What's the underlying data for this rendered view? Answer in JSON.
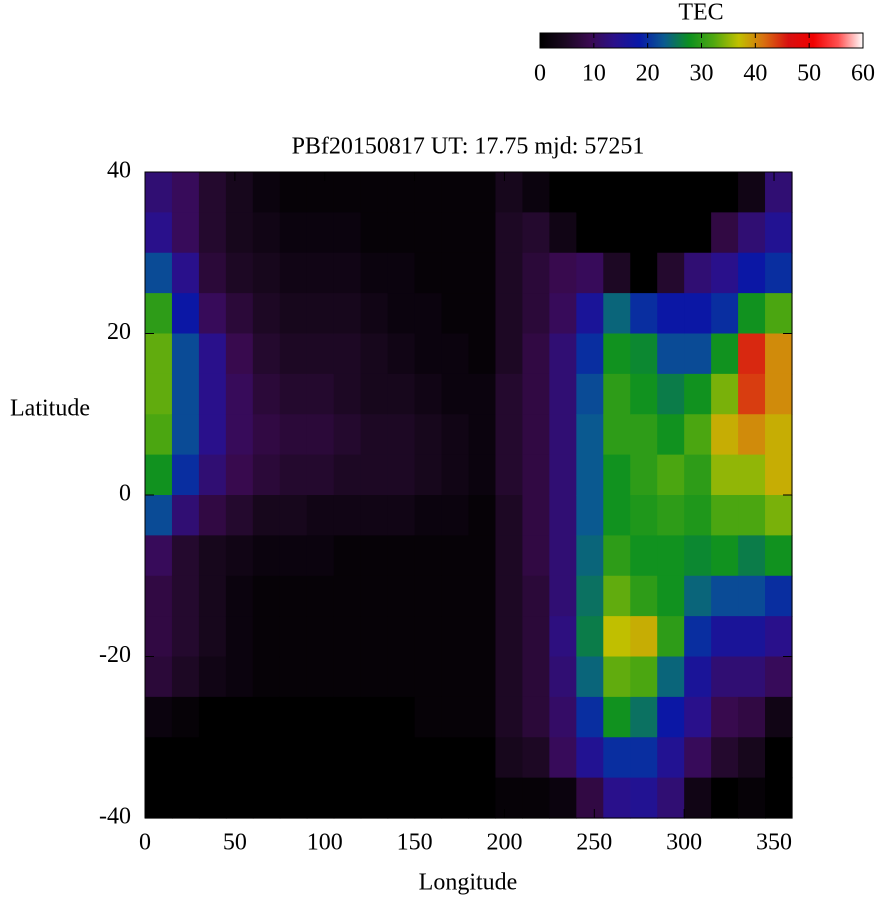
{
  "chart_data": {
    "type": "heatmap",
    "title": "PBf20150817  UT: 17.75  mjd: 57251",
    "xlabel": "Longitude",
    "ylabel": "Latitude",
    "colorbar_label": "TEC",
    "xlim": [
      0,
      360
    ],
    "ylim": [
      -40,
      40
    ],
    "xticks": [
      0,
      50,
      100,
      150,
      200,
      250,
      300,
      350
    ],
    "yticks": [
      40,
      20,
      0,
      -20,
      -40
    ],
    "clim": [
      0,
      60
    ],
    "cticks": [
      0,
      10,
      20,
      30,
      40,
      50,
      60
    ],
    "colormap": [
      "#000000",
      "#1a0820",
      "#3a0a50",
      "#2a108a",
      "#0818a8",
      "#0a5a90",
      "#0c9020",
      "#50a810",
      "#c0c000",
      "#d87010",
      "#d81010",
      "#f00000",
      "#ff5050",
      "#ffffff"
    ],
    "x": [
      7.5,
      22.5,
      37.5,
      52.5,
      67.5,
      82.5,
      97.5,
      112.5,
      127.5,
      142.5,
      157.5,
      172.5,
      187.5,
      202.5,
      217.5,
      232.5,
      247.5,
      262.5,
      277.5,
      292.5,
      307.5,
      322.5,
      337.5,
      352.5
    ],
    "y": [
      37.5,
      32.5,
      27.5,
      22.5,
      17.5,
      12.5,
      7.5,
      2.5,
      -2.5,
      -7.5,
      -12.5,
      -17.5,
      -22.5,
      -27.5,
      -32.5,
      -37.5
    ],
    "z": [
      [
        12,
        14,
        22,
        30,
        33,
        33,
        32,
        28,
        22,
        10,
        8,
        8,
        7,
        2,
        0,
        0
      ],
      [
        10,
        10,
        14,
        18,
        22,
        22,
        22,
        20,
        12,
        6,
        6,
        6,
        5,
        1,
        0,
        0
      ],
      [
        6,
        6,
        7,
        10,
        14,
        14,
        14,
        12,
        8,
        4,
        4,
        4,
        3,
        0,
        0,
        0
      ],
      [
        4,
        4,
        5,
        7,
        9,
        10,
        10,
        9,
        6,
        3,
        2,
        2,
        2,
        0,
        0,
        0
      ],
      [
        2,
        3,
        4,
        5,
        6,
        7,
        8,
        7,
        4,
        2,
        1,
        1,
        1,
        0,
        0,
        0
      ],
      [
        1,
        2,
        3,
        4,
        5,
        6,
        7,
        6,
        4,
        2,
        1,
        1,
        1,
        0,
        0,
        0
      ],
      [
        1,
        2,
        3,
        4,
        5,
        6,
        7,
        6,
        3,
        2,
        1,
        1,
        1,
        0,
        0,
        0
      ],
      [
        1,
        2,
        3,
        4,
        5,
        5,
        6,
        5,
        3,
        1,
        1,
        1,
        1,
        0,
        0,
        0
      ],
      [
        1,
        1,
        2,
        3,
        4,
        4,
        5,
        5,
        3,
        1,
        1,
        1,
        1,
        0,
        0,
        0
      ],
      [
        1,
        1,
        2,
        2,
        3,
        4,
        5,
        5,
        3,
        1,
        1,
        1,
        1,
        0,
        0,
        0
      ],
      [
        1,
        1,
        1,
        2,
        2,
        3,
        4,
        4,
        2,
        1,
        1,
        1,
        1,
        1,
        0,
        0
      ],
      [
        1,
        1,
        1,
        1,
        2,
        2,
        3,
        3,
        2,
        1,
        1,
        1,
        1,
        1,
        0,
        0
      ],
      [
        1,
        1,
        1,
        1,
        1,
        2,
        2,
        2,
        1,
        1,
        1,
        1,
        1,
        1,
        0,
        0
      ],
      [
        4,
        5,
        5,
        5,
        5,
        6,
        6,
        6,
        5,
        5,
        5,
        5,
        5,
        5,
        4,
        1
      ],
      [
        2,
        6,
        7,
        7,
        8,
        8,
        8,
        8,
        8,
        8,
        7,
        7,
        7,
        7,
        5,
        1
      ],
      [
        0,
        3,
        9,
        10,
        12,
        12,
        12,
        12,
        12,
        12,
        12,
        13,
        12,
        11,
        10,
        2
      ],
      [
        0,
        0,
        10,
        16,
        20,
        22,
        23,
        23,
        23,
        24,
        25,
        26,
        24,
        20,
        15,
        8
      ],
      [
        0,
        0,
        5,
        24,
        28,
        30,
        30,
        28,
        28,
        30,
        33,
        37,
        33,
        28,
        20,
        14
      ],
      [
        0,
        0,
        0,
        20,
        27,
        28,
        30,
        30,
        29,
        28,
        30,
        38,
        32,
        25,
        20,
        15
      ],
      [
        0,
        0,
        6,
        18,
        22,
        26,
        28,
        32,
        30,
        28,
        28,
        30,
        24,
        18,
        15,
        12
      ],
      [
        0,
        0,
        12,
        18,
        22,
        28,
        32,
        30,
        29,
        27,
        24,
        20,
        16,
        14,
        10,
        3
      ],
      [
        0,
        8,
        14,
        20,
        28,
        34,
        38,
        35,
        32,
        28,
        22,
        16,
        12,
        9,
        6,
        0
      ],
      [
        3,
        12,
        18,
        28,
        45,
        44,
        40,
        35,
        32,
        26,
        22,
        16,
        12,
        8,
        4,
        1
      ],
      [
        12,
        15,
        20,
        32,
        40,
        40,
        38,
        38,
        34,
        28,
        20,
        14,
        10,
        3,
        0,
        0
      ]
    ]
  }
}
